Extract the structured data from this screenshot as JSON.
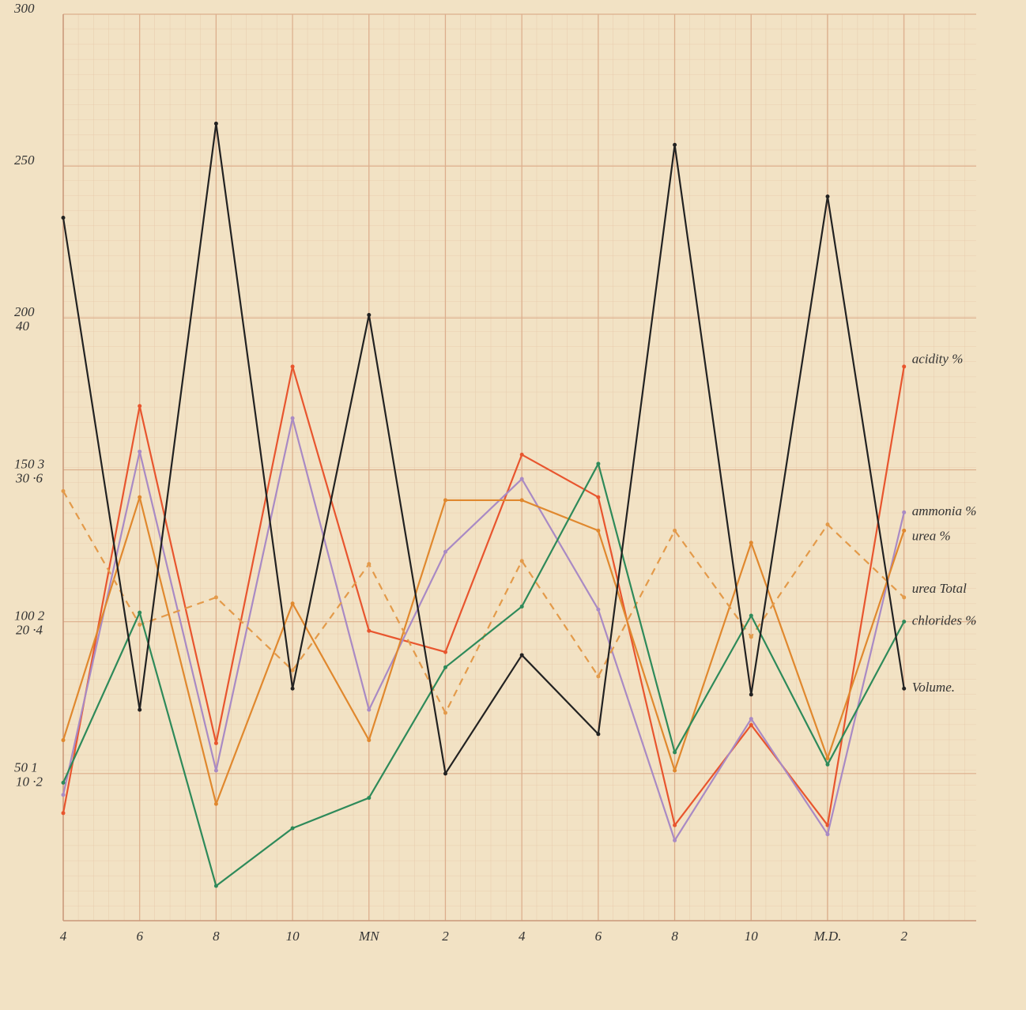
{
  "chart_data": {
    "type": "line",
    "categories": [
      "4",
      "6",
      "8",
      "10",
      "MN",
      "2",
      "4",
      "6",
      "8",
      "10",
      "M.D.",
      "2"
    ],
    "ylim": [
      0,
      300
    ],
    "yticks": [
      {
        "value": 50,
        "label": "50  1"
      },
      {
        "value": 100,
        "label": "100  2"
      },
      {
        "value": 150,
        "label": "150  3"
      },
      200,
      250,
      300
    ],
    "y2lim": [
      0,
      60
    ],
    "y2ticks": [
      {
        "value": 10,
        "label": "10  ·2"
      },
      {
        "value": 20,
        "label": "20  ·4"
      },
      {
        "value": 30,
        "label": "30  ·6"
      },
      40
    ],
    "grid": true,
    "series": [
      {
        "name": "acidity %",
        "color": "#e8552e",
        "style": "solid",
        "values": [
          37,
          171,
          60,
          184,
          97,
          90,
          155,
          141,
          33,
          66,
          33,
          184
        ]
      },
      {
        "name": "ammonia %",
        "color": "#a98ac4",
        "style": "solid",
        "values": [
          43,
          156,
          51,
          167,
          71,
          123,
          147,
          104,
          28,
          68,
          30,
          136
        ]
      },
      {
        "name": "urea %",
        "color": "#e0882e",
        "style": "solid",
        "values": [
          61,
          141,
          40,
          106,
          61,
          140,
          140,
          130,
          51,
          126,
          55,
          130
        ]
      },
      {
        "name": "urea Total",
        "color": "#e39a4a",
        "style": "dashed",
        "values": [
          143,
          99,
          108,
          84,
          119,
          70,
          120,
          82,
          130,
          95,
          132,
          108
        ]
      },
      {
        "name": "chlorides %",
        "color": "#2e8a5a",
        "style": "solid",
        "values": [
          47,
          103,
          13,
          32,
          42,
          85,
          105,
          152,
          57,
          102,
          53,
          100
        ]
      },
      {
        "name": "Volume.",
        "color": "#222222",
        "style": "solid",
        "values": [
          233,
          71,
          264,
          78,
          201,
          50,
          89,
          63,
          257,
          76,
          240,
          78
        ]
      }
    ]
  }
}
